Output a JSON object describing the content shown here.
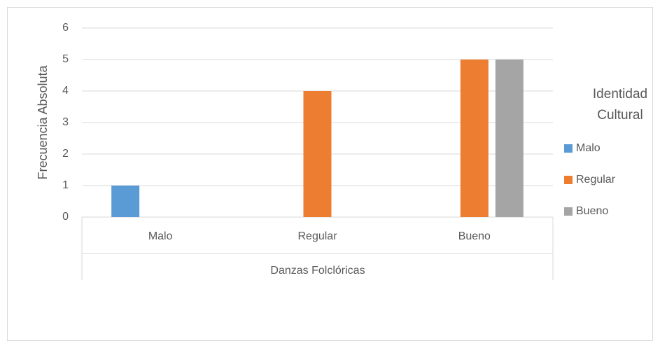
{
  "chart_data": {
    "type": "bar",
    "categories": [
      "Malo",
      "Regular",
      "Bueno"
    ],
    "x_label": "Danzas Folclóricas",
    "y_label": "Frecuencia Absoluta",
    "legend_title": "Identidad Cultural",
    "legend_position": "right",
    "series": [
      {
        "name": "Malo",
        "color": "#5b9bd5",
        "values": [
          1,
          0,
          0
        ]
      },
      {
        "name": "Regular",
        "color": "#ed7d31",
        "values": [
          0,
          4,
          5
        ]
      },
      {
        "name": "Bueno",
        "color": "#a5a5a5",
        "values": [
          0,
          0,
          5
        ]
      }
    ],
    "ylim": [
      0,
      6
    ],
    "yticks": [
      0,
      1,
      2,
      3,
      4,
      5,
      6
    ],
    "grid": true
  }
}
